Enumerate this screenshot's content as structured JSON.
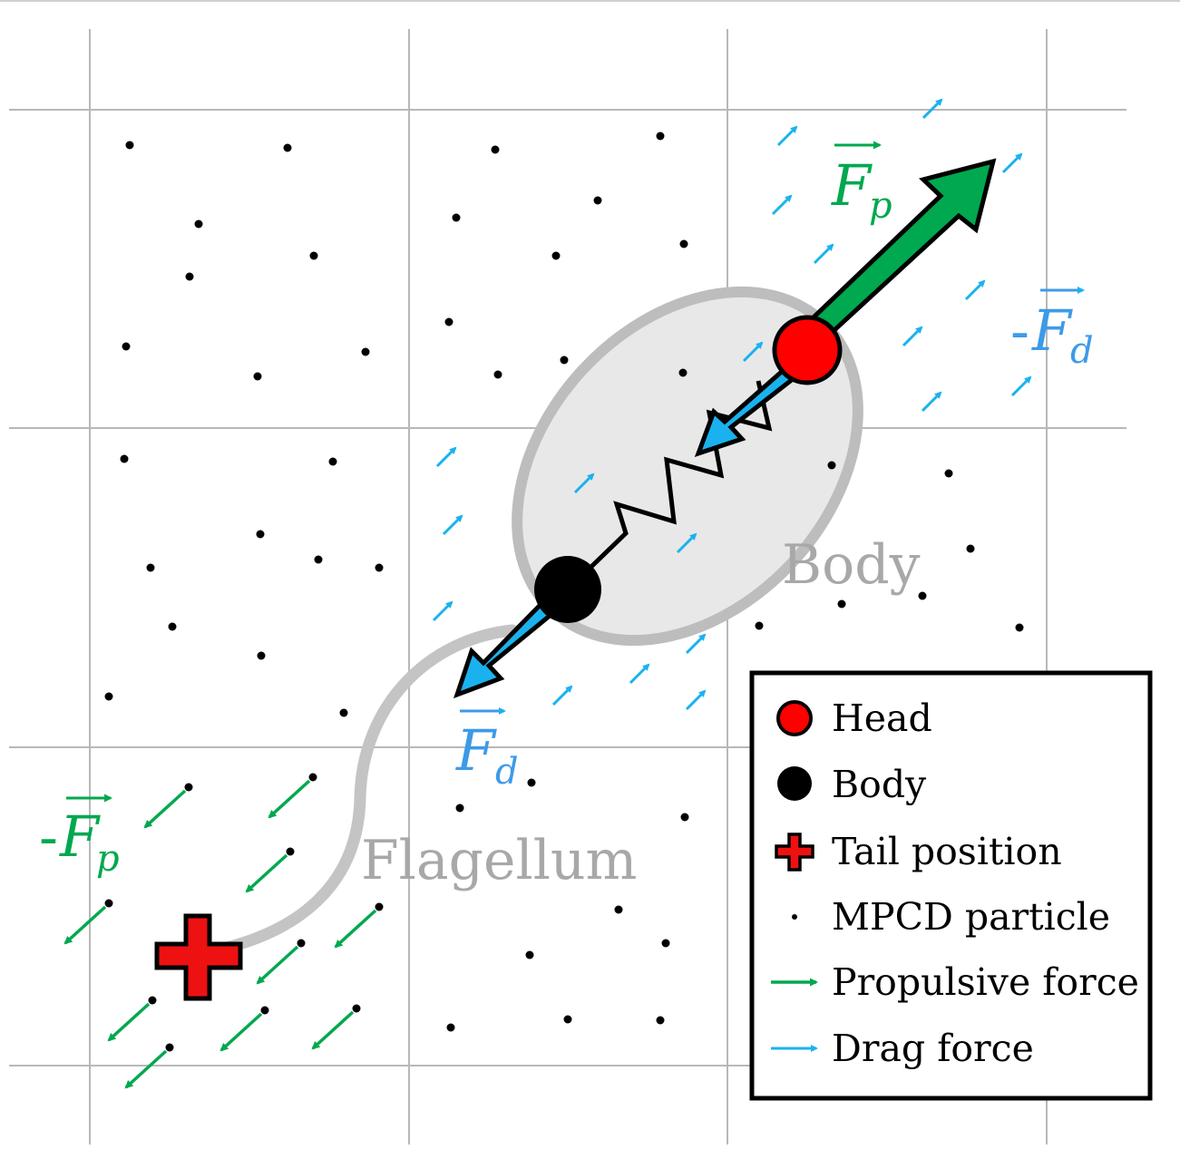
{
  "labels": {
    "body_region": "Body",
    "flagellum_region": "Flagellum",
    "fp_symbol": "F",
    "fp_subscript": "p",
    "fp_minus_prefix": "-",
    "fd_symbol": "F",
    "fd_subscript": "d",
    "fd_minus_prefix": "-"
  },
  "legend": {
    "head": "Head",
    "body": "Body",
    "tail": "Tail position",
    "mpcd": "MPCD particle",
    "propulsive": "Propulsive force",
    "drag": "Drag force"
  },
  "colors": {
    "head": "#ff0000",
    "propulsive": "#00a84f",
    "drag": "#1ab2ee",
    "label_blue": "#3d9ae8",
    "grid": "#b8b8b8",
    "body_fill": "#e8e8e8",
    "body_stroke": "#bdbdbd"
  }
}
